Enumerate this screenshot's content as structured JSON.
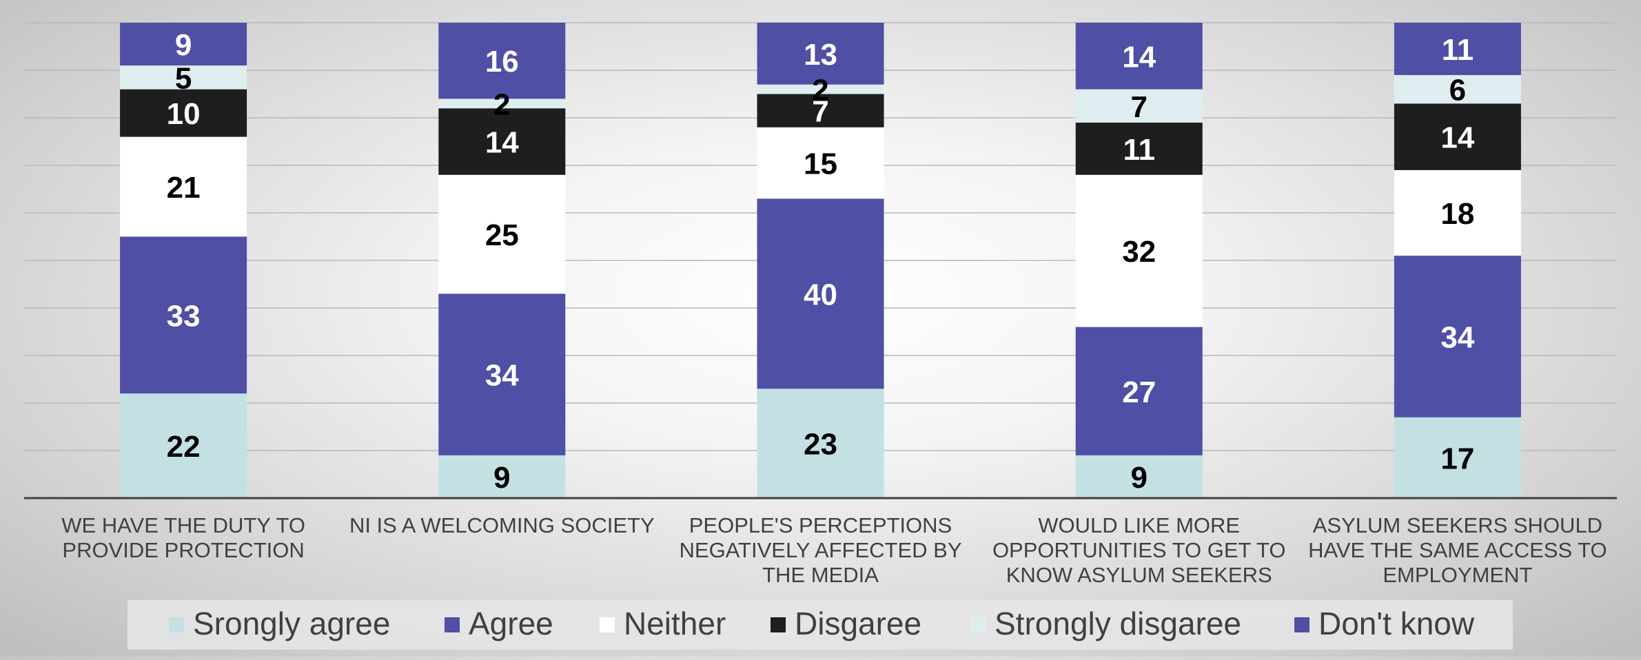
{
  "chart_data": {
    "type": "bar",
    "stacked": true,
    "normalized": true,
    "categories": [
      "WE HAVE THE DUTY TO PROVIDE PROTECTION",
      "NI IS A WELCOMING SOCIETY",
      "PEOPLE'S PERCEPTIONS NEGATIVELY AFFECTED BY THE MEDIA",
      "WOULD LIKE MORE OPPORTUNITIES TO GET TO KNOW ASYLUM SEEKERS",
      "ASYLUM SEEKERS SHOULD HAVE THE SAME ACCESS TO EMPLOYMENT"
    ],
    "category_lines": [
      [
        "WE HAVE THE DUTY TO",
        "PROVIDE PROTECTION"
      ],
      [
        "NI IS A WELCOMING SOCIETY"
      ],
      [
        "PEOPLE'S PERCEPTIONS",
        "NEGATIVELY AFFECTED BY",
        "THE MEDIA"
      ],
      [
        "WOULD LIKE MORE",
        "OPPORTUNITIES TO GET TO",
        "KNOW ASYLUM SEEKERS"
      ],
      [
        "ASYLUM SEEKERS SHOULD",
        "HAVE THE SAME ACCESS TO",
        "EMPLOYMENT"
      ]
    ],
    "series": [
      {
        "name": "Srongly agree",
        "color": "#c3e1e3",
        "label_color": "#000000",
        "values": [
          22,
          9,
          23,
          9,
          17
        ]
      },
      {
        "name": "Agree",
        "color": "#4f4fa6",
        "label_color": "#ffffff",
        "values": [
          33,
          34,
          40,
          27,
          34
        ]
      },
      {
        "name": "Neither",
        "color": "#ffffff",
        "label_color": "#000000",
        "values": [
          21,
          25,
          15,
          32,
          18
        ]
      },
      {
        "name": "Disgaree",
        "color": "#1e1e1e",
        "label_color": "#ffffff",
        "values": [
          10,
          14,
          7,
          11,
          14
        ]
      },
      {
        "name": "Strongly disgaree",
        "color": "#deeef0",
        "label_color": "#000000",
        "values": [
          5,
          2,
          2,
          7,
          6
        ]
      },
      {
        "name": "Don't know",
        "color": "#4f4fa6",
        "label_color": "#ffffff",
        "values": [
          9,
          16,
          13,
          14,
          11
        ]
      }
    ],
    "grid": true,
    "legend_position": "bottom",
    "title": "",
    "xlabel": "",
    "ylabel": ""
  }
}
